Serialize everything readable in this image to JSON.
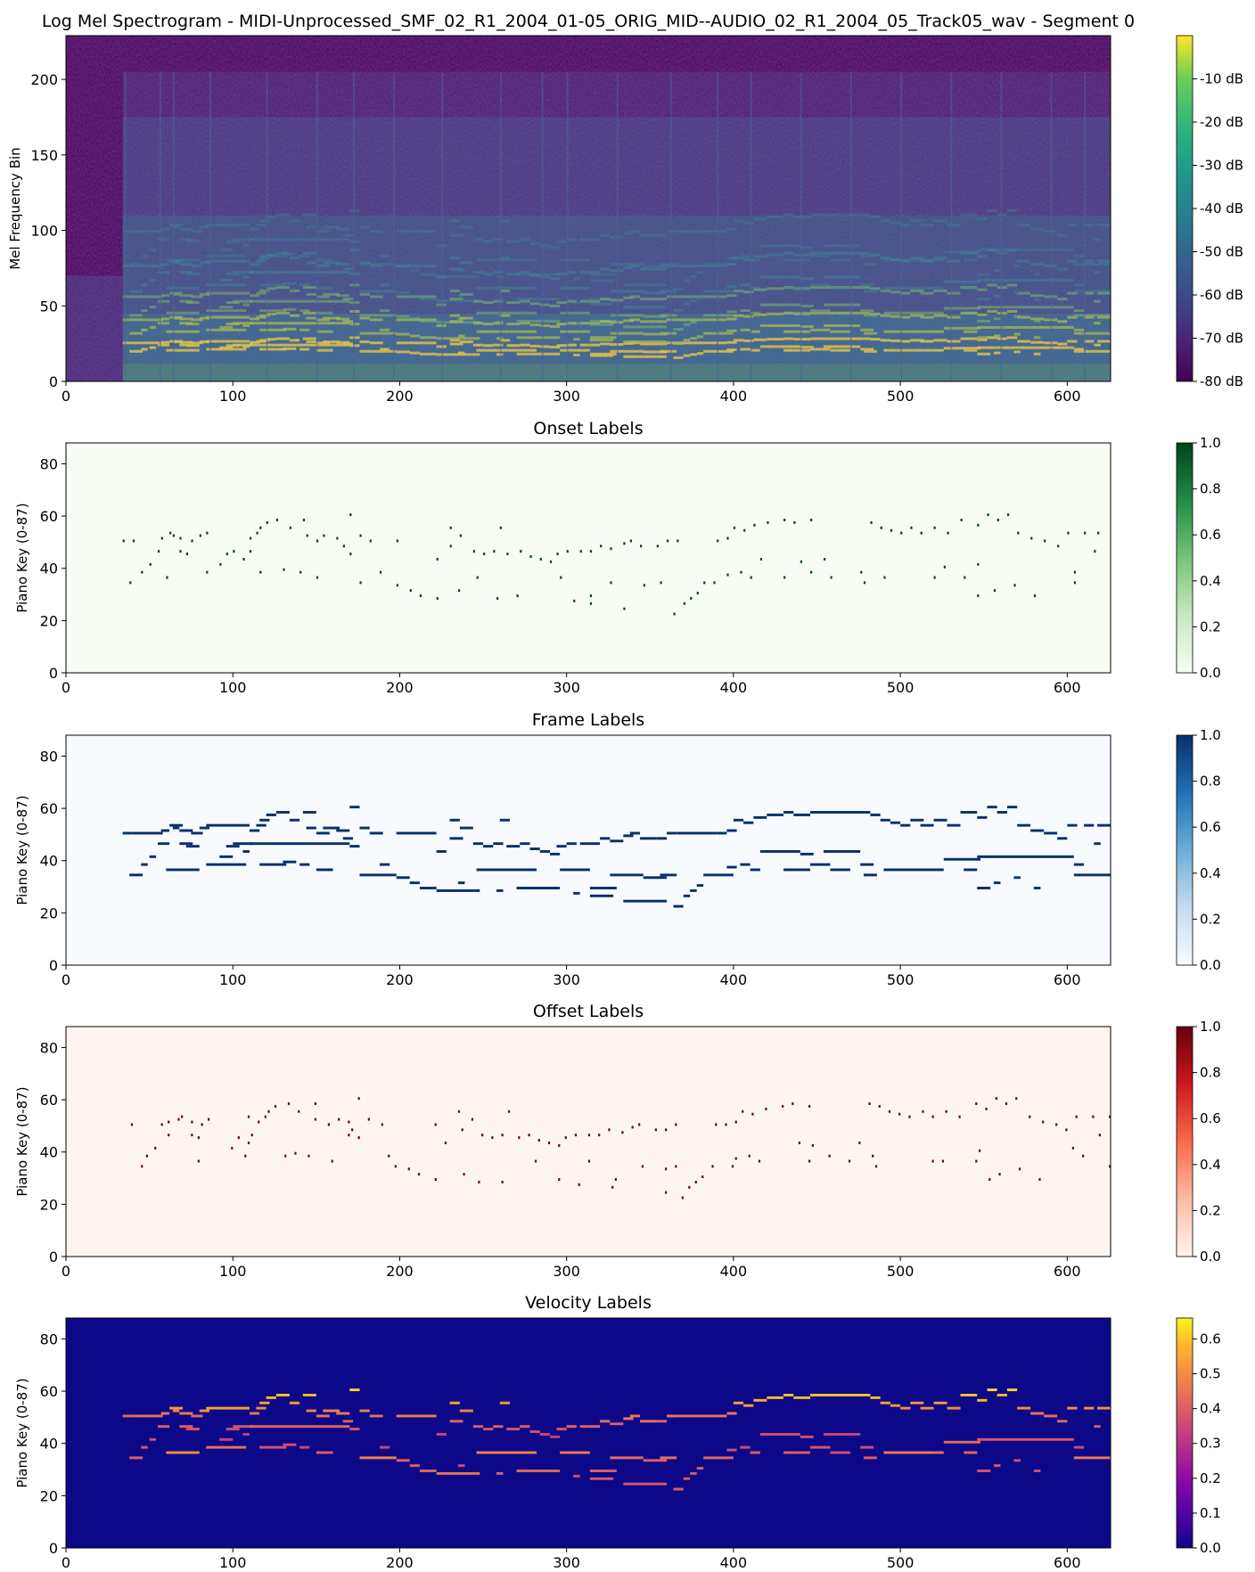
{
  "chart_data": [
    {
      "type": "heatmap",
      "title": "Log Mel Spectrogram - MIDI-Unprocessed_SMF_02_R1_2004_01-05_ORIG_MID--AUDIO_02_R1_2004_05_Track05_wav - Segment 0",
      "xlabel": "",
      "ylabel": "Mel Frequency Bin",
      "xlim": [
        0,
        626
      ],
      "ylim": [
        0,
        229
      ],
      "xticks": [
        "0",
        "100",
        "200",
        "300",
        "400",
        "500",
        "600"
      ],
      "yticks": [
        "0",
        "50",
        "100",
        "150",
        "200"
      ],
      "colormap": "viridis",
      "colorbar_ticks": [
        "-10 dB",
        "-20 dB",
        "-30 dB",
        "-40 dB",
        "-50 dB",
        "-60 dB",
        "-70 dB",
        "-80 dB"
      ],
      "colorbar_range": [
        -80,
        0
      ],
      "note_onsets": [
        35,
        56,
        64,
        86,
        120,
        150,
        172,
        196,
        225,
        260,
        285,
        300,
        330,
        362,
        390,
        410,
        440,
        470,
        500,
        530,
        560,
        590,
        610
      ]
    },
    {
      "type": "heatmap",
      "title": "Onset Labels",
      "xlabel": "",
      "ylabel": "Piano Key (0-87)",
      "xlim": [
        0,
        626
      ],
      "ylim": [
        0,
        88
      ],
      "xticks": [
        "0",
        "100",
        "200",
        "300",
        "400",
        "500",
        "600"
      ],
      "yticks": [
        "0",
        "20",
        "40",
        "60",
        "80"
      ],
      "colormap": "Greens",
      "colorbar_ticks": [
        "1.0",
        "0.8",
        "0.6",
        "0.4",
        "0.2",
        "0.0"
      ],
      "colorbar_range": [
        0,
        1
      ]
    },
    {
      "type": "heatmap",
      "title": "Frame Labels",
      "xlabel": "",
      "ylabel": "Piano Key (0-87)",
      "xlim": [
        0,
        626
      ],
      "ylim": [
        0,
        88
      ],
      "xticks": [
        "0",
        "100",
        "200",
        "300",
        "400",
        "500",
        "600"
      ],
      "yticks": [
        "0",
        "20",
        "40",
        "60",
        "80"
      ],
      "colormap": "Blues",
      "colorbar_ticks": [
        "1.0",
        "0.8",
        "0.6",
        "0.4",
        "0.2",
        "0.0"
      ],
      "colorbar_range": [
        0,
        1
      ]
    },
    {
      "type": "heatmap",
      "title": "Offset Labels",
      "xlabel": "",
      "ylabel": "Piano Key (0-87)",
      "xlim": [
        0,
        626
      ],
      "ylim": [
        0,
        88
      ],
      "xticks": [
        "0",
        "100",
        "200",
        "300",
        "400",
        "500",
        "600"
      ],
      "yticks": [
        "0",
        "20",
        "40",
        "60",
        "80"
      ],
      "colormap": "Reds",
      "colorbar_ticks": [
        "1.0",
        "0.8",
        "0.6",
        "0.4",
        "0.2",
        "0.0"
      ],
      "colorbar_range": [
        0,
        1
      ]
    },
    {
      "type": "heatmap",
      "title": "Velocity Labels",
      "xlabel": "",
      "ylabel": "Piano Key (0-87)",
      "xlim": [
        0,
        626
      ],
      "ylim": [
        0,
        88
      ],
      "xticks": [
        "0",
        "100",
        "200",
        "300",
        "400",
        "500",
        "600"
      ],
      "yticks": [
        "0",
        "20",
        "40",
        "60",
        "80"
      ],
      "colormap": "plasma",
      "colorbar_ticks": [
        "0.6",
        "0.5",
        "0.4",
        "0.3",
        "0.2",
        "0.1",
        "0.0"
      ],
      "colorbar_range": [
        0,
        0.66
      ]
    }
  ],
  "notes": [
    {
      "key": 50,
      "start": 34,
      "end": 40,
      "vel": 0.42
    },
    {
      "key": 50,
      "start": 40,
      "end": 58,
      "vel": 0.44
    },
    {
      "key": 34,
      "start": 38,
      "end": 46,
      "vel": 0.4
    },
    {
      "key": 38,
      "start": 45,
      "end": 49,
      "vel": 0.38
    },
    {
      "key": 41,
      "start": 50,
      "end": 54,
      "vel": 0.36
    },
    {
      "key": 46,
      "start": 55,
      "end": 62,
      "vel": 0.4
    },
    {
      "key": 51,
      "start": 57,
      "end": 62,
      "vel": 0.46
    },
    {
      "key": 53,
      "start": 62,
      "end": 70,
      "vel": 0.52
    },
    {
      "key": 52,
      "start": 64,
      "end": 68,
      "vel": 0.48
    },
    {
      "key": 51,
      "start": 68,
      "end": 76,
      "vel": 0.46
    },
    {
      "key": 36,
      "start": 60,
      "end": 80,
      "vel": 0.5
    },
    {
      "key": 46,
      "start": 68,
      "end": 76,
      "vel": 0.4
    },
    {
      "key": 45,
      "start": 72,
      "end": 80,
      "vel": 0.38
    },
    {
      "key": 50,
      "start": 75,
      "end": 82,
      "vel": 0.42
    },
    {
      "key": 52,
      "start": 80,
      "end": 86,
      "vel": 0.5
    },
    {
      "key": 53,
      "start": 84,
      "end": 110,
      "vel": 0.54
    },
    {
      "key": 38,
      "start": 84,
      "end": 108,
      "vel": 0.44
    },
    {
      "key": 41,
      "start": 92,
      "end": 100,
      "vel": 0.34
    },
    {
      "key": 45,
      "start": 96,
      "end": 104,
      "vel": 0.36
    },
    {
      "key": 46,
      "start": 100,
      "end": 112,
      "vel": 0.38
    },
    {
      "key": 43,
      "start": 106,
      "end": 110,
      "vel": 0.32
    },
    {
      "key": 51,
      "start": 110,
      "end": 116,
      "vel": 0.46
    },
    {
      "key": 53,
      "start": 114,
      "end": 120,
      "vel": 0.5
    },
    {
      "key": 55,
      "start": 116,
      "end": 122,
      "vel": 0.54
    },
    {
      "key": 57,
      "start": 120,
      "end": 126,
      "vel": 0.58
    },
    {
      "key": 58,
      "start": 126,
      "end": 134,
      "vel": 0.6
    },
    {
      "key": 46,
      "start": 110,
      "end": 170,
      "vel": 0.42
    },
    {
      "key": 38,
      "start": 116,
      "end": 132,
      "vel": 0.38
    },
    {
      "key": 39,
      "start": 130,
      "end": 138,
      "vel": 0.36
    },
    {
      "key": 55,
      "start": 134,
      "end": 140,
      "vel": 0.52
    },
    {
      "key": 58,
      "start": 142,
      "end": 150,
      "vel": 0.58
    },
    {
      "key": 52,
      "start": 144,
      "end": 150,
      "vel": 0.48
    },
    {
      "key": 38,
      "start": 140,
      "end": 146,
      "vel": 0.34
    },
    {
      "key": 50,
      "start": 150,
      "end": 158,
      "vel": 0.44
    },
    {
      "key": 52,
      "start": 154,
      "end": 164,
      "vel": 0.48
    },
    {
      "key": 36,
      "start": 150,
      "end": 160,
      "vel": 0.4
    },
    {
      "key": 51,
      "start": 162,
      "end": 170,
      "vel": 0.46
    },
    {
      "key": 48,
      "start": 166,
      "end": 172,
      "vel": 0.4
    },
    {
      "key": 60,
      "start": 170,
      "end": 176,
      "vel": 0.62
    },
    {
      "key": 45,
      "start": 170,
      "end": 176,
      "vel": 0.38
    },
    {
      "key": 52,
      "start": 176,
      "end": 182,
      "vel": 0.48
    },
    {
      "key": 34,
      "start": 176,
      "end": 198,
      "vel": 0.48
    },
    {
      "key": 50,
      "start": 182,
      "end": 190,
      "vel": 0.44
    },
    {
      "key": 38,
      "start": 188,
      "end": 194,
      "vel": 0.34
    },
    {
      "key": 50,
      "start": 198,
      "end": 222,
      "vel": 0.46
    },
    {
      "key": 33,
      "start": 198,
      "end": 206,
      "vel": 0.4
    },
    {
      "key": 31,
      "start": 206,
      "end": 212,
      "vel": 0.4
    },
    {
      "key": 29,
      "start": 212,
      "end": 222,
      "vel": 0.42
    },
    {
      "key": 28,
      "start": 222,
      "end": 248,
      "vel": 0.44
    },
    {
      "key": 43,
      "start": 222,
      "end": 228,
      "vel": 0.34
    },
    {
      "key": 48,
      "start": 230,
      "end": 238,
      "vel": 0.42
    },
    {
      "key": 55,
      "start": 230,
      "end": 236,
      "vel": 0.54
    },
    {
      "key": 31,
      "start": 235,
      "end": 239,
      "vel": 0.36
    },
    {
      "key": 52,
      "start": 236,
      "end": 244,
      "vel": 0.48
    },
    {
      "key": 46,
      "start": 244,
      "end": 250,
      "vel": 0.4
    },
    {
      "key": 45,
      "start": 250,
      "end": 256,
      "vel": 0.38
    },
    {
      "key": 36,
      "start": 246,
      "end": 282,
      "vel": 0.48
    },
    {
      "key": 46,
      "start": 256,
      "end": 262,
      "vel": 0.4
    },
    {
      "key": 55,
      "start": 260,
      "end": 266,
      "vel": 0.52
    },
    {
      "key": 28,
      "start": 258,
      "end": 262,
      "vel": 0.4
    },
    {
      "key": 45,
      "start": 264,
      "end": 272,
      "vel": 0.38
    },
    {
      "key": 29,
      "start": 270,
      "end": 296,
      "vel": 0.42
    },
    {
      "key": 46,
      "start": 272,
      "end": 278,
      "vel": 0.4
    },
    {
      "key": 44,
      "start": 278,
      "end": 284,
      "vel": 0.36
    },
    {
      "key": 43,
      "start": 284,
      "end": 290,
      "vel": 0.34
    },
    {
      "key": 42,
      "start": 290,
      "end": 296,
      "vel": 0.32
    },
    {
      "key": 45,
      "start": 294,
      "end": 300,
      "vel": 0.38
    },
    {
      "key": 46,
      "start": 300,
      "end": 306,
      "vel": 0.42
    },
    {
      "key": 36,
      "start": 296,
      "end": 314,
      "vel": 0.46
    },
    {
      "key": 27,
      "start": 304,
      "end": 308,
      "vel": 0.36
    },
    {
      "key": 46,
      "start": 308,
      "end": 314,
      "vel": 0.4
    },
    {
      "key": 46,
      "start": 314,
      "end": 320,
      "vel": 0.42
    },
    {
      "key": 29,
      "start": 314,
      "end": 330,
      "vel": 0.4
    },
    {
      "key": 26,
      "start": 314,
      "end": 328,
      "vel": 0.38
    },
    {
      "key": 48,
      "start": 320,
      "end": 326,
      "vel": 0.44
    },
    {
      "key": 47,
      "start": 326,
      "end": 334,
      "vel": 0.4
    },
    {
      "key": 34,
      "start": 326,
      "end": 346,
      "vel": 0.44
    },
    {
      "key": 49,
      "start": 334,
      "end": 340,
      "vel": 0.46
    },
    {
      "key": 50,
      "start": 338,
      "end": 344,
      "vel": 0.46
    },
    {
      "key": 24,
      "start": 334,
      "end": 360,
      "vel": 0.38
    },
    {
      "key": 48,
      "start": 344,
      "end": 354,
      "vel": 0.44
    },
    {
      "key": 33,
      "start": 346,
      "end": 360,
      "vel": 0.4
    },
    {
      "key": 34,
      "start": 356,
      "end": 366,
      "vel": 0.44
    },
    {
      "key": 48,
      "start": 354,
      "end": 360,
      "vel": 0.42
    },
    {
      "key": 50,
      "start": 360,
      "end": 366,
      "vel": 0.46
    },
    {
      "key": 50,
      "start": 366,
      "end": 390,
      "vel": 0.44
    },
    {
      "key": 22,
      "start": 364,
      "end": 370,
      "vel": 0.4
    },
    {
      "key": 26,
      "start": 370,
      "end": 374,
      "vel": 0.38
    },
    {
      "key": 28,
      "start": 374,
      "end": 378,
      "vel": 0.38
    },
    {
      "key": 30,
      "start": 378,
      "end": 382,
      "vel": 0.4
    },
    {
      "key": 34,
      "start": 382,
      "end": 388,
      "vel": 0.42
    },
    {
      "key": 34,
      "start": 388,
      "end": 400,
      "vel": 0.42
    },
    {
      "key": 50,
      "start": 390,
      "end": 396,
      "vel": 0.46
    },
    {
      "key": 51,
      "start": 396,
      "end": 402,
      "vel": 0.46
    },
    {
      "key": 37,
      "start": 396,
      "end": 402,
      "vel": 0.36
    },
    {
      "key": 55,
      "start": 400,
      "end": 406,
      "vel": 0.54
    },
    {
      "key": 54,
      "start": 406,
      "end": 412,
      "vel": 0.54
    },
    {
      "key": 38,
      "start": 404,
      "end": 410,
      "vel": 0.36
    },
    {
      "key": 36,
      "start": 410,
      "end": 416,
      "vel": 0.4
    },
    {
      "key": 56,
      "start": 412,
      "end": 420,
      "vel": 0.56
    },
    {
      "key": 57,
      "start": 420,
      "end": 430,
      "vel": 0.58
    },
    {
      "key": 43,
      "start": 416,
      "end": 440,
      "vel": 0.36
    },
    {
      "key": 58,
      "start": 430,
      "end": 436,
      "vel": 0.6
    },
    {
      "key": 57,
      "start": 436,
      "end": 446,
      "vel": 0.58
    },
    {
      "key": 36,
      "start": 430,
      "end": 446,
      "vel": 0.4
    },
    {
      "key": 42,
      "start": 440,
      "end": 448,
      "vel": 0.36
    },
    {
      "key": 58,
      "start": 446,
      "end": 482,
      "vel": 0.6
    },
    {
      "key": 38,
      "start": 446,
      "end": 458,
      "vel": 0.38
    },
    {
      "key": 43,
      "start": 454,
      "end": 476,
      "vel": 0.34
    },
    {
      "key": 36,
      "start": 458,
      "end": 470,
      "vel": 0.36
    },
    {
      "key": 38,
      "start": 476,
      "end": 484,
      "vel": 0.36
    },
    {
      "key": 57,
      "start": 482,
      "end": 488,
      "vel": 0.58
    },
    {
      "key": 55,
      "start": 488,
      "end": 494,
      "vel": 0.54
    },
    {
      "key": 34,
      "start": 478,
      "end": 486,
      "vel": 0.4
    },
    {
      "key": 54,
      "start": 494,
      "end": 500,
      "vel": 0.52
    },
    {
      "key": 36,
      "start": 490,
      "end": 520,
      "vel": 0.46
    },
    {
      "key": 53,
      "start": 500,
      "end": 506,
      "vel": 0.5
    },
    {
      "key": 55,
      "start": 506,
      "end": 514,
      "vel": 0.52
    },
    {
      "key": 53,
      "start": 512,
      "end": 520,
      "vel": 0.5
    },
    {
      "key": 36,
      "start": 520,
      "end": 526,
      "vel": 0.44
    },
    {
      "key": 55,
      "start": 520,
      "end": 528,
      "vel": 0.52
    },
    {
      "key": 53,
      "start": 528,
      "end": 536,
      "vel": 0.5
    },
    {
      "key": 40,
      "start": 526,
      "end": 548,
      "vel": 0.42
    },
    {
      "key": 58,
      "start": 536,
      "end": 546,
      "vel": 0.6
    },
    {
      "key": 56,
      "start": 546,
      "end": 552,
      "vel": 0.58
    },
    {
      "key": 36,
      "start": 538,
      "end": 546,
      "vel": 0.42
    },
    {
      "key": 41,
      "start": 546,
      "end": 604,
      "vel": 0.38
    },
    {
      "key": 60,
      "start": 552,
      "end": 558,
      "vel": 0.62
    },
    {
      "key": 58,
      "start": 558,
      "end": 564,
      "vel": 0.58
    },
    {
      "key": 29,
      "start": 546,
      "end": 554,
      "vel": 0.38
    },
    {
      "key": 31,
      "start": 556,
      "end": 560,
      "vel": 0.38
    },
    {
      "key": 60,
      "start": 564,
      "end": 570,
      "vel": 0.62
    },
    {
      "key": 53,
      "start": 570,
      "end": 578,
      "vel": 0.5
    },
    {
      "key": 33,
      "start": 568,
      "end": 572,
      "vel": 0.36
    },
    {
      "key": 51,
      "start": 578,
      "end": 586,
      "vel": 0.46
    },
    {
      "key": 29,
      "start": 580,
      "end": 584,
      "vel": 0.36
    },
    {
      "key": 50,
      "start": 586,
      "end": 594,
      "vel": 0.44
    },
    {
      "key": 48,
      "start": 594,
      "end": 600,
      "vel": 0.42
    },
    {
      "key": 53,
      "start": 600,
      "end": 606,
      "vel": 0.5
    },
    {
      "key": 38,
      "start": 604,
      "end": 610,
      "vel": 0.36
    },
    {
      "key": 34,
      "start": 604,
      "end": 626,
      "vel": 0.46
    },
    {
      "key": 53,
      "start": 610,
      "end": 616,
      "vel": 0.5
    },
    {
      "key": 46,
      "start": 616,
      "end": 620,
      "vel": 0.4
    },
    {
      "key": 53,
      "start": 618,
      "end": 626,
      "vel": 0.5
    }
  ]
}
